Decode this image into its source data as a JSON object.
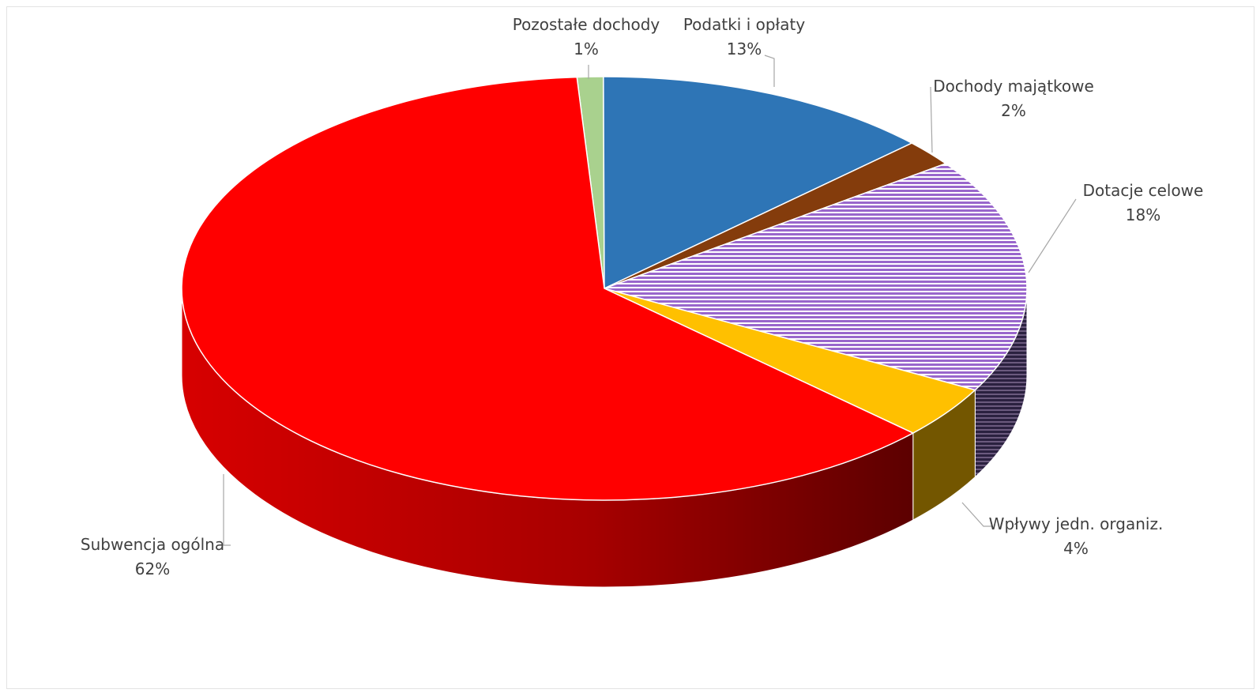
{
  "chart_data": {
    "type": "pie",
    "style": "3d",
    "title": "",
    "series": [
      {
        "values": [
          1,
          13,
          2,
          18,
          4,
          62
        ],
        "categories": [
          "Pozostałe dochody",
          "Podatki i opłaty",
          "Dochody majątkowe",
          "Dotacje celowe",
          "Wpływy jedn. organiz.",
          "Subwencja ogólna"
        ]
      }
    ],
    "slices": [
      {
        "label": "Pozostałe dochody",
        "value": 1,
        "percent_label": "1%",
        "color": "#a9d18e",
        "pattern": "none"
      },
      {
        "label": "Podatki i opłaty",
        "value": 13,
        "percent_label": "13%",
        "color": "#2e75b6",
        "pattern": "none"
      },
      {
        "label": "Dochody majątkowe",
        "value": 2,
        "percent_label": "2%",
        "color": "#843c0c",
        "pattern": "none"
      },
      {
        "label": "Dotacje celowe",
        "value": 18,
        "percent_label": "18%",
        "color": "#b07ed8",
        "pattern": "horizontal-stripes"
      },
      {
        "label": "Wpływy jedn. organiz.",
        "value": 4,
        "percent_label": "4%",
        "color": "#ffc000",
        "pattern": "none"
      },
      {
        "label": "Subwencja ogólna",
        "value": 62,
        "percent_label": "62%",
        "color": "#ff0000",
        "pattern": "none"
      }
    ],
    "legend": "none",
    "data_labels": "outside-with-leader-lines"
  }
}
